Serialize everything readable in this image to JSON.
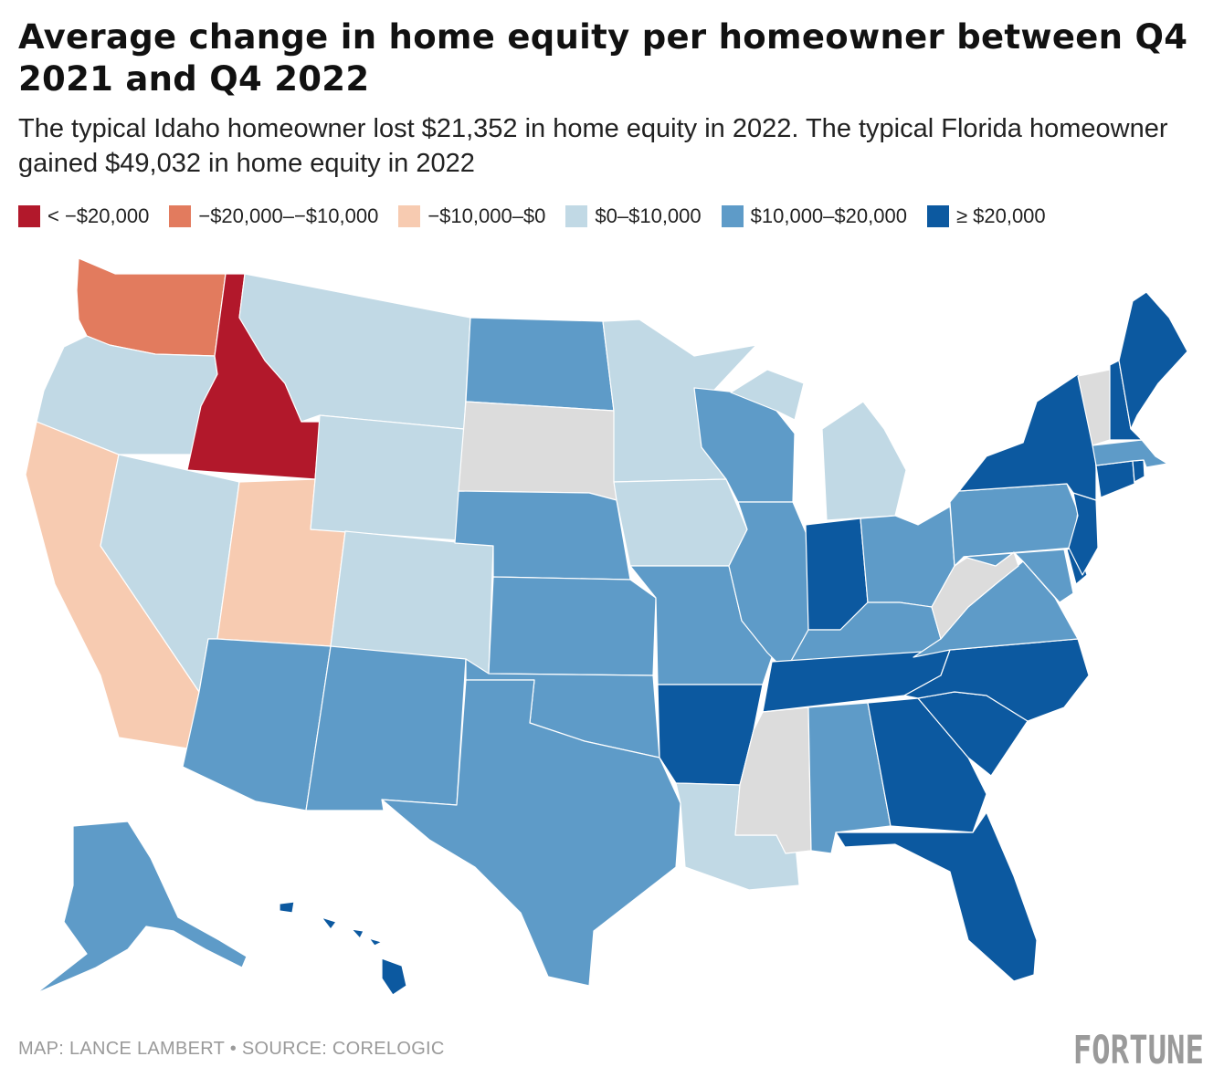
{
  "title": "Average change in home equity per homeowner between Q4 2021 and Q4 2022",
  "subtitle": "The typical Idaho homeowner lost $21,352 in home equity in 2022. The typical Florida homeowner gained $49,032 in home equity in 2022",
  "legend": [
    {
      "label": "< −$20,000",
      "color": "#b2182b"
    },
    {
      "label": "−$20,000–−$10,000",
      "color": "#e27b5e"
    },
    {
      "label": "−$10,000–$0",
      "color": "#f7cbb1"
    },
    {
      "label": "$0–$10,000",
      "color": "#c1d9e5"
    },
    {
      "label": "$10,000–$20,000",
      "color": "#5e9bc8"
    },
    {
      "label": "≥ $20,000",
      "color": "#0c59a0"
    }
  ],
  "no_data_color": "#dcdcdc",
  "states": {
    "WA": "#e27b5e",
    "ID": "#b2182b",
    "CA": "#f7cbb1",
    "UT": "#f7cbb1",
    "OR": "#c1d9e5",
    "NV": "#c1d9e5",
    "MT": "#c1d9e5",
    "WY": "#c1d9e5",
    "CO": "#c1d9e5",
    "MN": "#c1d9e5",
    "IA": "#c1d9e5",
    "MI": "#c1d9e5",
    "LA": "#c1d9e5",
    "ND": "#5e9bc8",
    "NE": "#5e9bc8",
    "KS": "#5e9bc8",
    "OK": "#5e9bc8",
    "TX": "#5e9bc8",
    "NM": "#5e9bc8",
    "AZ": "#5e9bc8",
    "MO": "#5e9bc8",
    "WI": "#5e9bc8",
    "IL": "#5e9bc8",
    "KY": "#5e9bc8",
    "OH": "#5e9bc8",
    "PA": "#5e9bc8",
    "VA": "#5e9bc8",
    "MD": "#5e9bc8",
    "MA": "#5e9bc8",
    "AL": "#5e9bc8",
    "AK": "#5e9bc8",
    "IN": "#0c59a0",
    "TN": "#0c59a0",
    "NC": "#0c59a0",
    "SC": "#0c59a0",
    "GA": "#0c59a0",
    "FL": "#0c59a0",
    "AR": "#0c59a0",
    "NY": "#0c59a0",
    "NJ": "#0c59a0",
    "DE": "#0c59a0",
    "CT": "#0c59a0",
    "RI": "#0c59a0",
    "NH": "#0c59a0",
    "ME": "#0c59a0",
    "HI": "#0c59a0",
    "SD": "#dcdcdc",
    "MS": "#dcdcdc",
    "WV": "#dcdcdc",
    "VT": "#dcdcdc"
  },
  "credit": "MAP: LANCE LAMBERT • SOURCE: CORELOGIC",
  "logo": "FORTUNE"
}
